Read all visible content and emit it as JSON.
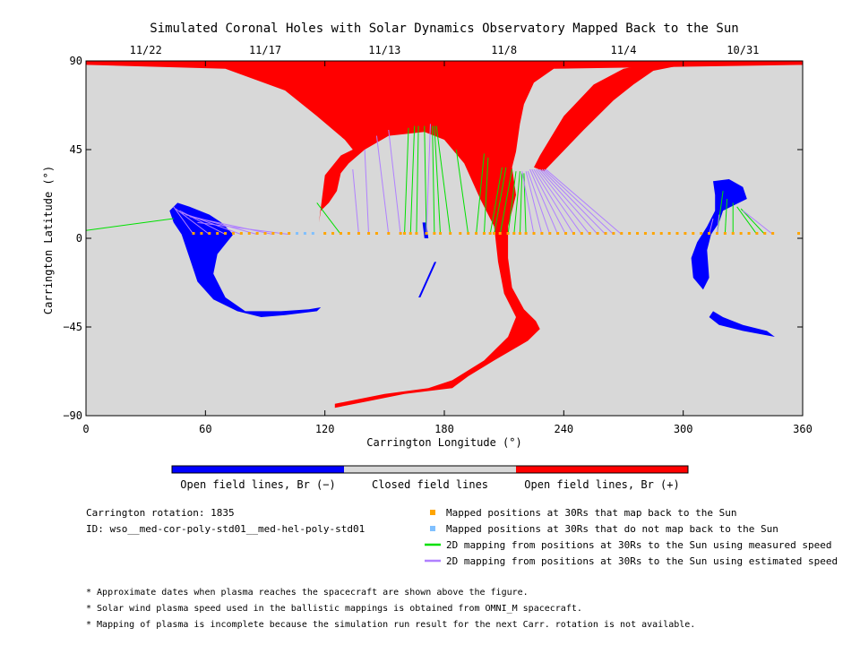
{
  "chart_data": {
    "type": "scatter",
    "title": "Simulated Coronal Holes with Solar Dynamics Observatory Mapped Back to the Sun",
    "xlabel": "Carrington Longitude (°)",
    "ylabel": "Carrington Latitude (°)",
    "xlim": [
      0,
      360
    ],
    "ylim": [
      -90,
      90
    ],
    "x_ticks": [
      0,
      60,
      120,
      180,
      240,
      300,
      360
    ],
    "y_ticks": [
      90,
      45,
      0,
      -45,
      -90
    ],
    "y_tick_labels": [
      "90",
      "45",
      "0",
      "−45",
      "−90"
    ],
    "top_axis_dates": [
      {
        "label": "11/22",
        "lon": 30
      },
      {
        "label": "11/17",
        "lon": 90
      },
      {
        "label": "11/13",
        "lon": 150
      },
      {
        "label": "11/8",
        "lon": 210
      },
      {
        "label": "11/4",
        "lon": 270
      },
      {
        "label": "10/31",
        "lon": 330
      }
    ],
    "colors": {
      "negative": "#0000ff",
      "closed": "#d8d8d8",
      "positive": "#ff0000",
      "mapped": "#ffa500",
      "not_mapped": "#80c0ff",
      "measured": "#00e000",
      "estimated": "#b080ff"
    },
    "colorbar": {
      "labels": [
        "Open field lines, Br (−)",
        "Closed field lines",
        "Open field lines, Br (+)"
      ]
    },
    "series": [
      {
        "name": "Mapped positions at 30Rs that map back to the Sun",
        "kind": "points",
        "lat": 2.5,
        "lons": [
          54,
          58,
          62,
          66,
          70,
          74,
          78,
          82,
          86,
          90,
          94,
          98,
          102,
          120,
          124,
          128,
          132,
          137,
          142,
          146,
          152,
          158,
          160,
          163,
          166,
          171,
          175,
          178,
          183,
          188,
          192,
          196,
          200,
          203,
          205,
          208,
          212,
          215,
          218,
          221,
          225,
          229,
          233,
          237,
          241,
          245,
          249,
          253,
          257,
          261,
          265,
          269,
          273,
          277,
          281,
          285,
          289,
          293,
          297,
          301,
          305,
          309,
          313,
          317,
          321,
          325,
          329,
          333,
          337,
          341,
          345,
          358
        ]
      },
      {
        "name": "Mapped positions at 30Rs that do not map back to the Sun",
        "kind": "points",
        "lat": 2.5,
        "lons": [
          106,
          110,
          114
        ]
      },
      {
        "name": "2D mapping from positions at 30Rs to the Sun using measured speed",
        "kind": "lines",
        "segments": [
          [
            0,
            4,
            44,
            10
          ],
          [
            116,
            18,
            128,
            2
          ],
          [
            162,
            56,
            160,
            2
          ],
          [
            165,
            57,
            163,
            2
          ],
          [
            167,
            57,
            166,
            2
          ],
          [
            170,
            57,
            171,
            2
          ],
          [
            174,
            57,
            175,
            2
          ],
          [
            175,
            57,
            178,
            2
          ],
          [
            176,
            57,
            183,
            2
          ],
          [
            186,
            45,
            192,
            2
          ],
          [
            200,
            43,
            196,
            2
          ],
          [
            202,
            41,
            200,
            2
          ],
          [
            209,
            36,
            203,
            2
          ],
          [
            211,
            36,
            205,
            2
          ],
          [
            214,
            35,
            208,
            2
          ],
          [
            216,
            34,
            212,
            2
          ],
          [
            218,
            34,
            215,
            2
          ],
          [
            219,
            33,
            218,
            2
          ],
          [
            220,
            33,
            221,
            2
          ],
          [
            320,
            24,
            317,
            2
          ],
          [
            322,
            20,
            321,
            2
          ],
          [
            325,
            18,
            325,
            2
          ],
          [
            327,
            16,
            337,
            2
          ],
          [
            329,
            15,
            341,
            2
          ]
        ]
      },
      {
        "name": "2D mapping from positions at 30Rs to the Sun using estimated speed",
        "kind": "lines",
        "segments": [
          [
            44,
            16,
            54,
            2
          ],
          [
            45,
            15,
            62,
            2
          ],
          [
            47,
            14,
            70,
            2
          ],
          [
            48,
            13,
            78,
            2
          ],
          [
            50,
            12,
            86,
            2
          ],
          [
            52,
            11,
            94,
            2
          ],
          [
            56,
            8,
            102,
            2
          ],
          [
            134,
            35,
            137,
            2
          ],
          [
            140,
            45,
            142,
            2
          ],
          [
            146,
            52,
            152,
            2
          ],
          [
            152,
            55,
            158,
            2
          ],
          [
            173,
            58,
            171,
            2
          ],
          [
            219,
            34,
            225,
            2
          ],
          [
            221,
            34,
            229,
            2
          ],
          [
            222,
            34,
            233,
            2
          ],
          [
            223,
            35,
            237,
            2
          ],
          [
            224,
            35,
            241,
            2
          ],
          [
            225,
            35,
            245,
            2
          ],
          [
            226,
            35,
            249,
            2
          ],
          [
            227,
            35,
            253,
            2
          ],
          [
            228,
            35,
            257,
            2
          ],
          [
            229,
            35,
            261,
            2
          ],
          [
            230,
            35,
            265,
            2
          ],
          [
            231,
            35,
            269,
            2
          ],
          [
            315,
            10,
            313,
            2
          ],
          [
            318,
            12,
            317,
            2
          ],
          [
            330,
            14,
            345,
            2
          ]
        ]
      }
    ],
    "regions": [
      {
        "polarity": "positive",
        "polygon": [
          [
            0,
            90
          ],
          [
            360,
            90
          ],
          [
            360,
            88
          ],
          [
            235,
            86
          ],
          [
            225,
            79
          ],
          [
            220,
            68
          ],
          [
            218,
            58
          ],
          [
            216,
            44
          ],
          [
            214,
            36
          ],
          [
            216,
            22
          ],
          [
            214,
            14
          ],
          [
            212,
            6
          ],
          [
            212,
            -10
          ],
          [
            214,
            -25
          ],
          [
            220,
            -36
          ],
          [
            226,
            -42
          ],
          [
            228,
            -46
          ],
          [
            222,
            -52
          ],
          [
            205,
            -62
          ],
          [
            192,
            -70
          ],
          [
            184,
            -76
          ],
          [
            160,
            -79
          ],
          [
            140,
            -83
          ],
          [
            125,
            -86
          ],
          [
            125,
            -84
          ],
          [
            150,
            -79
          ],
          [
            172,
            -76
          ],
          [
            184,
            -72
          ],
          [
            200,
            -62
          ],
          [
            212,
            -50
          ],
          [
            216,
            -40
          ],
          [
            210,
            -28
          ],
          [
            207,
            -12
          ],
          [
            205,
            6
          ],
          [
            198,
            20
          ],
          [
            190,
            38
          ],
          [
            180,
            50
          ],
          [
            170,
            54
          ],
          [
            152,
            52
          ],
          [
            140,
            45
          ],
          [
            132,
            38
          ],
          [
            128,
            33
          ],
          [
            126,
            24
          ],
          [
            122,
            18
          ],
          [
            118,
            14
          ],
          [
            117,
            8
          ],
          [
            120,
            32
          ],
          [
            128,
            42
          ],
          [
            134,
            45
          ],
          [
            130,
            50
          ],
          [
            116,
            62
          ],
          [
            100,
            75
          ],
          [
            70,
            86
          ],
          [
            0,
            88
          ]
        ]
      },
      {
        "polarity": "positive",
        "polygon": [
          [
            230,
            34
          ],
          [
            250,
            55
          ],
          [
            265,
            70
          ],
          [
            275,
            78
          ],
          [
            285,
            85
          ],
          [
            300,
            88
          ],
          [
            360,
            88
          ],
          [
            360,
            90
          ],
          [
            290,
            90
          ],
          [
            270,
            86
          ],
          [
            255,
            78
          ],
          [
            240,
            62
          ],
          [
            228,
            42
          ],
          [
            225,
            36
          ]
        ]
      },
      {
        "polarity": "negative",
        "polygon": [
          [
            46,
            18
          ],
          [
            52,
            16
          ],
          [
            62,
            12
          ],
          [
            68,
            8
          ],
          [
            74,
            2
          ],
          [
            66,
            -8
          ],
          [
            64,
            -18
          ],
          [
            70,
            -30
          ],
          [
            80,
            -37
          ],
          [
            98,
            -37
          ],
          [
            112,
            -36
          ],
          [
            118,
            -35
          ],
          [
            116,
            -37
          ],
          [
            100,
            -39
          ],
          [
            88,
            -40
          ],
          [
            76,
            -37
          ],
          [
            64,
            -31
          ],
          [
            56,
            -22
          ],
          [
            52,
            -10
          ],
          [
            48,
            2
          ],
          [
            44,
            8
          ],
          [
            42,
            14
          ]
        ]
      },
      {
        "polarity": "negative",
        "polygon": [
          [
            315,
            29
          ],
          [
            323,
            30
          ],
          [
            330,
            26
          ],
          [
            332,
            20
          ],
          [
            328,
            18
          ],
          [
            324,
            16
          ],
          [
            320,
            14
          ],
          [
            318,
            8
          ],
          [
            314,
            2
          ],
          [
            312,
            -6
          ],
          [
            313,
            -20
          ],
          [
            310,
            -26
          ],
          [
            305,
            -20
          ],
          [
            304,
            -10
          ],
          [
            307,
            -2
          ],
          [
            312,
            6
          ],
          [
            316,
            14
          ],
          [
            316,
            22
          ]
        ]
      },
      {
        "polarity": "negative",
        "polygon": [
          [
            315,
            -37
          ],
          [
            320,
            -40
          ],
          [
            330,
            -44
          ],
          [
            342,
            -47
          ],
          [
            346,
            -50
          ],
          [
            330,
            -47
          ],
          [
            318,
            -44
          ],
          [
            313,
            -40
          ]
        ]
      },
      {
        "polarity": "negative",
        "polygon": [
          [
            169,
            8
          ],
          [
            171,
            8
          ],
          [
            172,
            0
          ],
          [
            170,
            0
          ]
        ]
      },
      {
        "polarity": "negative",
        "polygon": [
          [
            175,
            -12
          ],
          [
            176,
            -12
          ],
          [
            168,
            -30
          ],
          [
            167,
            -30
          ]
        ]
      }
    ]
  },
  "info": {
    "carrington_rotation": "Carrington rotation: 1835",
    "id": "ID: wso__med-cor-poly-std01__med-hel-poly-std01"
  },
  "notes": [
    "* Approximate dates when plasma reaches the spacecraft are shown above the figure.",
    "* Solar wind plasma speed used in the ballistic mappings is obtained from OMNI_M spacecraft.",
    "* Mapping of plasma is incomplete because the simulation run result for the next Carr. rotation is not available."
  ]
}
